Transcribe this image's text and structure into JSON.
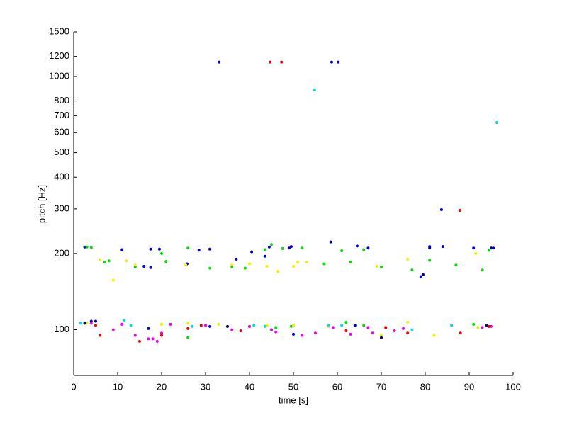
{
  "chart_data": {
    "type": "scatter",
    "xlabel": "time [s]",
    "ylabel": "pitch [Hz]",
    "xlim": [
      0,
      100
    ],
    "ylim": [
      66,
      1500
    ],
    "yscale": "log",
    "xticks": [
      0,
      10,
      20,
      30,
      40,
      50,
      60,
      70,
      80,
      90,
      100
    ],
    "yticks": [
      100,
      200,
      300,
      400,
      500,
      600,
      700,
      800,
      1000,
      1200,
      1500
    ],
    "grid": false,
    "series": [
      {
        "color": "#0000d0",
        "x": [
          2.5,
          11,
          17.5,
          19.5,
          25.8,
          28.5,
          31,
          37,
          40.5,
          43.5,
          44.5,
          49.5,
          58.5,
          64.5,
          67,
          81,
          84,
          91,
          95.5,
          16,
          17.5,
          79,
          33.1,
          58.7,
          60.2,
          83.7,
          4,
          17,
          31,
          50,
          64,
          94
        ],
        "values": [
          212,
          207,
          208,
          208,
          182,
          206,
          208,
          190,
          203,
          195,
          212,
          213,
          222,
          214,
          210,
          213,
          213,
          210,
          210,
          178,
          176,
          162,
          1140,
          1140,
          1140,
          298,
          108,
          101,
          103,
          96,
          104,
          104
        ]
      },
      {
        "color": "#00dd00",
        "x": [
          3,
          4,
          7,
          8,
          14,
          20,
          21,
          26,
          31,
          36,
          39,
          43.5,
          45,
          47.5,
          52,
          57,
          61,
          63,
          66,
          70,
          77,
          81,
          87,
          93,
          94.5,
          2.5,
          26,
          46,
          49.5,
          62,
          66,
          91,
          54.8
        ],
        "values": [
          212,
          211,
          185,
          187,
          177,
          200,
          186,
          210,
          175,
          177,
          175,
          207,
          217,
          209,
          210,
          182,
          205,
          185,
          207,
          177,
          172,
          188,
          180,
          172,
          206,
          106,
          93,
          102,
          103,
          107,
          104,
          105,
          885
        ]
      },
      {
        "color": "#eeee00",
        "x": [
          6,
          9,
          12,
          14,
          25.5,
          36,
          40,
          44,
          46.5,
          50,
          51,
          53,
          69,
          76,
          91.5,
          3,
          13,
          20,
          26,
          33,
          44,
          50,
          58,
          70,
          76,
          82,
          92
        ],
        "values": [
          189,
          157,
          187,
          180,
          180,
          180,
          182,
          178,
          170,
          178,
          185,
          185,
          178,
          190,
          200,
          106,
          104,
          105,
          106,
          105,
          104,
          104,
          103,
          95,
          107,
          95,
          102
        ]
      },
      {
        "color": "#ee00ee",
        "x": [
          4,
          9,
          11,
          14,
          18,
          20,
          22,
          30,
          36,
          40,
          45,
          46,
          52,
          55,
          59,
          63,
          67,
          68,
          73,
          75,
          86,
          93,
          95,
          17,
          19
        ],
        "values": [
          106,
          100,
          105,
          95,
          92,
          97,
          105,
          104,
          100,
          103,
          100,
          98,
          95,
          97,
          102,
          96,
          102,
          97,
          99,
          101,
          104,
          102,
          103,
          92,
          90
        ]
      },
      {
        "color": "#ee0000",
        "x": [
          5,
          6,
          15,
          20,
          29,
          38,
          44.7,
          47.3,
          62,
          71,
          76,
          88,
          94.5,
          87.9,
          26
        ],
        "values": [
          104,
          95,
          90,
          95,
          104,
          99,
          1140,
          1140,
          99,
          102,
          97,
          97,
          103,
          296,
          101
        ]
      },
      {
        "color": "#00dddd",
        "x": [
          1.5,
          11.5,
          13,
          27,
          41,
          43.5,
          58,
          61,
          77,
          86,
          96.3,
          54.8
        ],
        "values": [
          106,
          109,
          104,
          103,
          104,
          103,
          104,
          104,
          100,
          104,
          658,
          885
        ]
      },
      {
        "color": "#000080",
        "x": [
          2.5,
          5,
          31,
          35,
          49,
          70,
          81,
          79.5,
          95
        ],
        "values": [
          106,
          108,
          208,
          103,
          210,
          93,
          210,
          165,
          210
        ]
      }
    ]
  }
}
